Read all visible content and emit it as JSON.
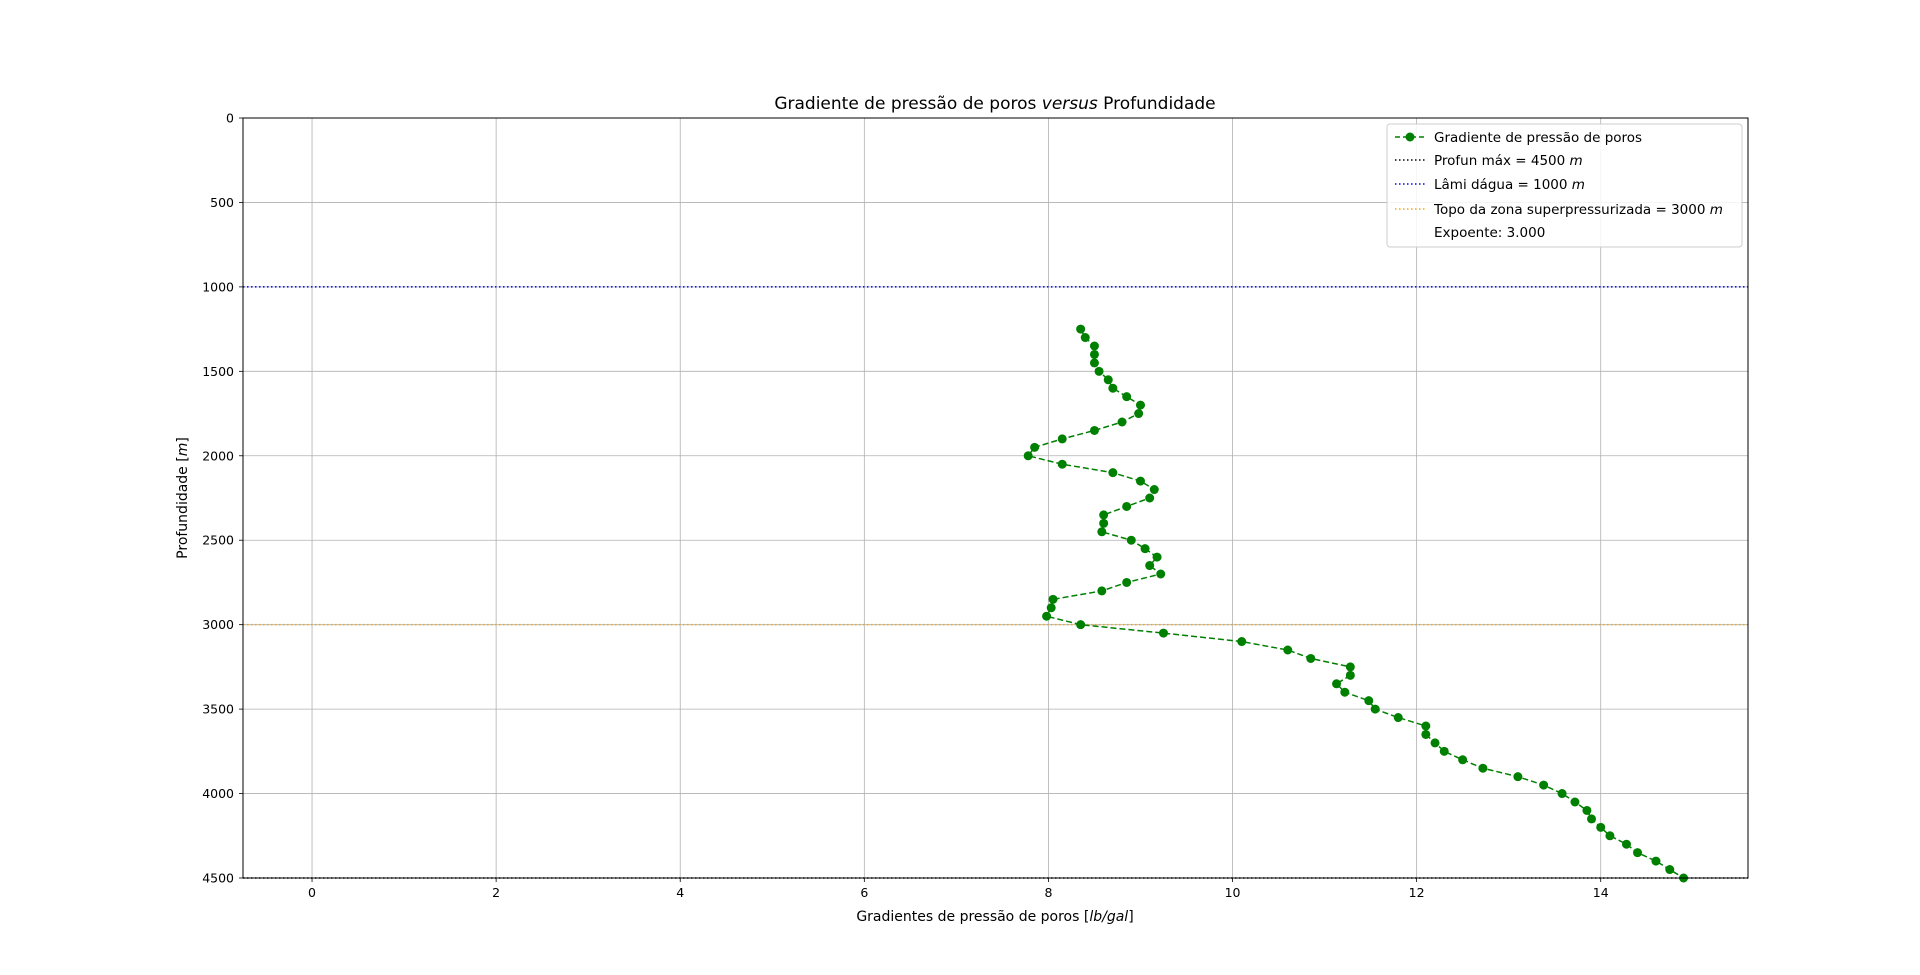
{
  "chart_data": {
    "type": "line",
    "title_parts": [
      "Gradiente de pressão de poros ",
      "versus",
      " Profundidade"
    ],
    "xlabel_parts": [
      "Gradientes de pressão de poros [",
      "lb/gal",
      "]"
    ],
    "ylabel_parts": [
      "Profundidade [",
      "m",
      "]"
    ],
    "xlim": [
      -0.75,
      15.6
    ],
    "ylim": [
      4500,
      0
    ],
    "y_inverted": true,
    "grid": true,
    "x_ticks": [
      0,
      2,
      4,
      6,
      8,
      10,
      12,
      14
    ],
    "y_ticks": [
      0,
      500,
      1000,
      1500,
      2000,
      2500,
      3000,
      3500,
      4000,
      4500
    ],
    "legend_position": "top-right",
    "series": [
      {
        "name": "Gradiente de pressão de poros",
        "color": "#008000",
        "style": "dashed-with-circle-markers",
        "points": [
          [
            8.35,
            1250
          ],
          [
            8.4,
            1300
          ],
          [
            8.5,
            1350
          ],
          [
            8.5,
            1400
          ],
          [
            8.5,
            1450
          ],
          [
            8.55,
            1500
          ],
          [
            8.65,
            1550
          ],
          [
            8.7,
            1600
          ],
          [
            8.85,
            1650
          ],
          [
            9.0,
            1700
          ],
          [
            8.98,
            1750
          ],
          [
            8.8,
            1800
          ],
          [
            8.5,
            1850
          ],
          [
            8.15,
            1900
          ],
          [
            7.85,
            1950
          ],
          [
            7.78,
            2000
          ],
          [
            8.15,
            2050
          ],
          [
            8.7,
            2100
          ],
          [
            9.0,
            2150
          ],
          [
            9.15,
            2200
          ],
          [
            9.1,
            2250
          ],
          [
            8.85,
            2300
          ],
          [
            8.6,
            2350
          ],
          [
            8.6,
            2400
          ],
          [
            8.58,
            2450
          ],
          [
            8.9,
            2500
          ],
          [
            9.05,
            2550
          ],
          [
            9.18,
            2600
          ],
          [
            9.1,
            2650
          ],
          [
            9.22,
            2700
          ],
          [
            8.85,
            2750
          ],
          [
            8.58,
            2800
          ],
          [
            8.05,
            2850
          ],
          [
            8.03,
            2900
          ],
          [
            7.98,
            2950
          ],
          [
            8.35,
            3000
          ],
          [
            9.25,
            3050
          ],
          [
            10.1,
            3100
          ],
          [
            10.6,
            3150
          ],
          [
            10.85,
            3200
          ],
          [
            11.28,
            3250
          ],
          [
            11.28,
            3300
          ],
          [
            11.13,
            3350
          ],
          [
            11.22,
            3400
          ],
          [
            11.48,
            3450
          ],
          [
            11.55,
            3500
          ],
          [
            11.8,
            3550
          ],
          [
            12.1,
            3600
          ],
          [
            12.1,
            3650
          ],
          [
            12.2,
            3700
          ],
          [
            12.3,
            3750
          ],
          [
            12.5,
            3800
          ],
          [
            12.72,
            3850
          ],
          [
            13.1,
            3900
          ],
          [
            13.38,
            3950
          ],
          [
            13.58,
            4000
          ],
          [
            13.72,
            4050
          ],
          [
            13.85,
            4100
          ],
          [
            13.9,
            4150
          ],
          [
            14.0,
            4200
          ],
          [
            14.1,
            4250
          ],
          [
            14.28,
            4300
          ],
          [
            14.4,
            4350
          ],
          [
            14.6,
            4400
          ],
          [
            14.75,
            4450
          ],
          [
            14.9,
            4500
          ]
        ]
      }
    ],
    "reference_lines": [
      {
        "name": "profun-max",
        "label_parts": [
          "Profun máx = 4500 ",
          "m"
        ],
        "y": 4500,
        "color": "#000000",
        "style": "dotted"
      },
      {
        "name": "lamina-dagua",
        "label_parts": [
          "Lâmi dágua = 1000 ",
          "m"
        ],
        "y": 1000,
        "color": "#0000ff",
        "style": "dotted"
      },
      {
        "name": "topo-zona",
        "label_parts": [
          "Topo da zona superpressurizada = 3000 ",
          "m"
        ],
        "y": 3000,
        "color": "#ffa500",
        "style": "dotted"
      }
    ],
    "legend_extra_text": "Expoente: 3.000"
  }
}
